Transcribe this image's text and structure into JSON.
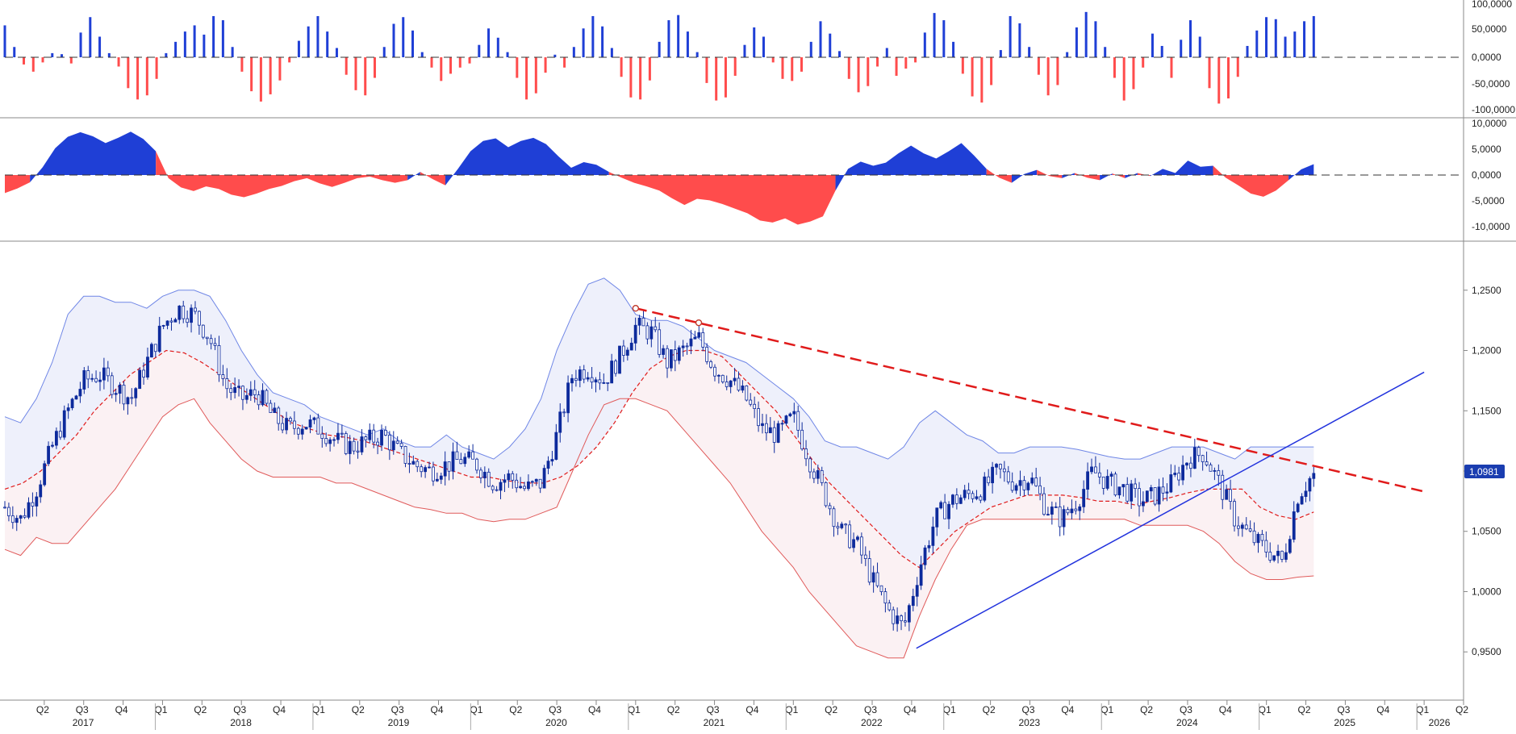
{
  "colors": {
    "up": "#1f3fd6",
    "down": "#ff4c4c",
    "candle": "#0d2a9c",
    "band_upper": "#6f86e6",
    "band_lower": "#e05a5a",
    "band_fill_upper": "#eef0fb",
    "band_fill_lower": "#fbf1f3",
    "mid_line": "#e01b1b",
    "resistance": "#e01b1b",
    "support": "#2233dd",
    "price_tag": "#1a3db0"
  },
  "chart_data": [
    {
      "type": "bar",
      "panel": "oscillator-bars",
      "yticks": [
        "100,0000",
        "50,0000",
        "0,0000",
        "-50,0000",
        "-100,0000"
      ],
      "ytick_values": [
        100,
        50,
        0,
        -50,
        -100
      ],
      "ylim": [
        -105,
        105
      ],
      "start_year": 2017,
      "end_year": 2025.3,
      "values": [
        62,
        20,
        -14,
        -28,
        -10,
        8,
        6,
        -12,
        48,
        78,
        40,
        8,
        -18,
        -60,
        -82,
        -74,
        -42,
        8,
        30,
        50,
        62,
        44,
        80,
        72,
        20,
        -28,
        -66,
        -86,
        -72,
        -45,
        -10,
        32,
        60,
        80,
        50,
        18,
        -34,
        -64,
        -74,
        -40,
        20,
        65,
        78,
        52,
        10,
        -20,
        -46,
        -32,
        -20,
        -12,
        24,
        56,
        38,
        10,
        -40,
        -82,
        -70,
        -30,
        5,
        -20,
        20,
        56,
        80,
        60,
        18,
        -38,
        -78,
        -82,
        -45,
        30,
        72,
        82,
        50,
        10,
        -50,
        -84,
        -78,
        -36,
        24,
        58,
        40,
        -10,
        -42,
        -46,
        -28,
        30,
        70,
        46,
        12,
        -42,
        -68,
        -56,
        -18,
        18,
        -36,
        -22,
        -10,
        48,
        86,
        72,
        30,
        -32,
        -76,
        -88,
        -54,
        14,
        80,
        66,
        20,
        -34,
        -74,
        -54,
        10,
        58,
        88,
        70,
        20,
        -40,
        -84,
        -62,
        -20,
        46,
        22,
        -40,
        34,
        72,
        40,
        -60,
        -90,
        -80,
        -38,
        22,
        52,
        78,
        74,
        40,
        50,
        70,
        80
      ],
      "baseline": "0,0000"
    },
    {
      "type": "area",
      "panel": "momentum-area",
      "yticks": [
        "10,0000",
        "5,0000",
        "0,0000",
        "-5,0000",
        "-10,0000"
      ],
      "ytick_values": [
        10,
        5,
        0,
        -5,
        -10
      ],
      "ylim": [
        -11.5,
        11
      ],
      "start_year": 2017,
      "end_year": 2025.3,
      "values": [
        -3.5,
        -2.6,
        -1.4,
        1.5,
        5.2,
        7.4,
        8.3,
        7.5,
        6.2,
        7.2,
        8.4,
        7.0,
        4.6,
        -0.6,
        -2.4,
        -3.1,
        -2.2,
        -2.7,
        -3.8,
        -4.3,
        -3.6,
        -2.7,
        -2.1,
        -1.2,
        -0.6,
        -1.6,
        -2.3,
        -1.5,
        -0.6,
        -0.3,
        -1.0,
        -1.5,
        -1.0,
        0.6,
        -0.8,
        -2.0,
        1.2,
        4.6,
        6.6,
        7.1,
        5.4,
        6.6,
        7.2,
        6.0,
        3.6,
        1.4,
        2.5,
        2.0,
        0.6,
        -0.5,
        -1.5,
        -2.2,
        -3.0,
        -4.5,
        -5.8,
        -4.6,
        -4.9,
        -5.6,
        -6.5,
        -7.4,
        -8.8,
        -9.2,
        -8.4,
        -9.6,
        -9.0,
        -8.0,
        -3.0,
        1.2,
        2.6,
        1.8,
        2.4,
        4.2,
        5.7,
        4.2,
        3.2,
        4.6,
        6.2,
        3.8,
        1.2,
        -0.5,
        -1.5,
        0.2,
        1.0,
        -0.2,
        -0.6,
        0.4,
        -0.5,
        -1.0,
        0.3,
        -0.6,
        0.4,
        -0.2,
        1.2,
        0.4,
        2.8,
        1.6,
        1.8,
        -0.5,
        -2.0,
        -3.6,
        -4.2,
        -3.0,
        -1.0,
        1.1,
        2.1
      ]
    },
    {
      "type": "line",
      "panel": "price-candles-bands",
      "yticks": [
        "1,2500",
        "1,2000",
        "1,1500",
        "1,1000",
        "1,0500",
        "1,0000",
        "0,9500"
      ],
      "ytick_values": [
        1.25,
        1.2,
        1.15,
        1.1,
        1.05,
        1.0,
        0.95
      ],
      "ylim": [
        0.91,
        1.29
      ],
      "x_ticks": [
        {
          "label": "Q2",
          "t": 2017.25
        },
        {
          "label": "Q3",
          "t": 2017.5
        },
        {
          "label": "Q4",
          "t": 2017.75
        },
        {
          "label": "Q1",
          "t": 2018.0
        },
        {
          "label": "Q2",
          "t": 2018.25
        },
        {
          "label": "Q3",
          "t": 2018.5
        },
        {
          "label": "Q4",
          "t": 2018.75
        },
        {
          "label": "Q1",
          "t": 2019.0
        },
        {
          "label": "Q2",
          "t": 2019.25
        },
        {
          "label": "Q3",
          "t": 2019.5
        },
        {
          "label": "Q4",
          "t": 2019.75
        },
        {
          "label": "Q1",
          "t": 2020.0
        },
        {
          "label": "Q2",
          "t": 2020.25
        },
        {
          "label": "Q3",
          "t": 2020.5
        },
        {
          "label": "Q4",
          "t": 2020.75
        },
        {
          "label": "Q1",
          "t": 2021.0
        },
        {
          "label": "Q2",
          "t": 2021.25
        },
        {
          "label": "Q3",
          "t": 2021.5
        },
        {
          "label": "Q4",
          "t": 2021.75
        },
        {
          "label": "Q1",
          "t": 2022.0
        },
        {
          "label": "Q2",
          "t": 2022.25
        },
        {
          "label": "Q3",
          "t": 2022.5
        },
        {
          "label": "Q4",
          "t": 2022.75
        },
        {
          "label": "Q1",
          "t": 2023.0
        },
        {
          "label": "Q2",
          "t": 2023.25
        },
        {
          "label": "Q3",
          "t": 2023.5
        },
        {
          "label": "Q4",
          "t": 2023.75
        },
        {
          "label": "Q1",
          "t": 2024.0
        },
        {
          "label": "Q2",
          "t": 2024.25
        },
        {
          "label": "Q3",
          "t": 2024.5
        },
        {
          "label": "Q4",
          "t": 2024.75
        },
        {
          "label": "Q1",
          "t": 2025.0
        },
        {
          "label": "Q2",
          "t": 2025.25
        },
        {
          "label": "Q3",
          "t": 2025.5
        },
        {
          "label": "Q4",
          "t": 2025.75
        },
        {
          "label": "Q1",
          "t": 2026.0
        },
        {
          "label": "Q2",
          "t": 2026.25
        }
      ],
      "years": [
        {
          "label": "2017",
          "t": 2017.5
        },
        {
          "label": "2018",
          "t": 2018.5
        },
        {
          "label": "2019",
          "t": 2019.5
        },
        {
          "label": "2020",
          "t": 2020.5
        },
        {
          "label": "2021",
          "t": 2021.5
        },
        {
          "label": "2022",
          "t": 2022.5
        },
        {
          "label": "2023",
          "t": 2023.5
        },
        {
          "label": "2024",
          "t": 2024.5
        },
        {
          "label": "2025",
          "t": 2025.5
        },
        {
          "label": "2026",
          "t": 2026.1
        }
      ],
      "price": {
        "x": [
          2017.0,
          2017.1,
          2017.2,
          2017.3,
          2017.4,
          2017.5,
          2017.6,
          2017.7,
          2017.8,
          2017.9,
          2018.0,
          2018.1,
          2018.2,
          2018.3,
          2018.4,
          2018.5,
          2018.6,
          2018.7,
          2018.8,
          2018.9,
          2019.0,
          2019.1,
          2019.2,
          2019.3,
          2019.4,
          2019.5,
          2019.6,
          2019.7,
          2019.8,
          2019.9,
          2020.0,
          2020.1,
          2020.2,
          2020.3,
          2020.4,
          2020.5,
          2020.6,
          2020.7,
          2020.8,
          2020.9,
          2021.0,
          2021.1,
          2021.2,
          2021.3,
          2021.4,
          2021.5,
          2021.6,
          2021.7,
          2021.8,
          2021.9,
          2022.0,
          2022.1,
          2022.2,
          2022.3,
          2022.4,
          2022.5,
          2022.6,
          2022.7,
          2022.8,
          2022.9,
          2023.0,
          2023.1,
          2023.2,
          2023.3,
          2023.4,
          2023.5,
          2023.6,
          2023.7,
          2023.8,
          2023.9,
          2024.0,
          2024.1,
          2024.2,
          2024.3,
          2024.4,
          2024.5,
          2024.6,
          2024.7,
          2024.8,
          2024.9,
          2025.0,
          2025.1,
          2025.2,
          2025.3
        ],
        "y": [
          1.07,
          1.06,
          1.085,
          1.12,
          1.15,
          1.175,
          1.18,
          1.17,
          1.16,
          1.19,
          1.22,
          1.235,
          1.23,
          1.21,
          1.17,
          1.16,
          1.165,
          1.145,
          1.135,
          1.14,
          1.135,
          1.125,
          1.12,
          1.125,
          1.13,
          1.115,
          1.105,
          1.1,
          1.105,
          1.11,
          1.105,
          1.09,
          1.095,
          1.085,
          1.09,
          1.13,
          1.18,
          1.185,
          1.175,
          1.195,
          1.22,
          1.215,
          1.19,
          1.2,
          1.21,
          1.185,
          1.175,
          1.16,
          1.135,
          1.13,
          1.145,
          1.11,
          1.08,
          1.05,
          1.04,
          1.01,
          0.985,
          0.97,
          1.02,
          1.06,
          1.075,
          1.08,
          1.085,
          1.1,
          1.09,
          1.095,
          1.07,
          1.06,
          1.075,
          1.1,
          1.09,
          1.085,
          1.075,
          1.08,
          1.09,
          1.11,
          1.115,
          1.09,
          1.06,
          1.045,
          1.035,
          1.025,
          1.08,
          1.0981
        ]
      },
      "upper_band": [
        1.145,
        1.14,
        1.16,
        1.19,
        1.23,
        1.245,
        1.245,
        1.24,
        1.24,
        1.235,
        1.245,
        1.25,
        1.25,
        1.245,
        1.225,
        1.2,
        1.18,
        1.165,
        1.16,
        1.155,
        1.145,
        1.14,
        1.135,
        1.13,
        1.135,
        1.125,
        1.12,
        1.12,
        1.13,
        1.12,
        1.115,
        1.11,
        1.12,
        1.135,
        1.16,
        1.2,
        1.23,
        1.255,
        1.26,
        1.25,
        1.23,
        1.225,
        1.225,
        1.22,
        1.21,
        1.2,
        1.195,
        1.19,
        1.18,
        1.17,
        1.16,
        1.145,
        1.125,
        1.12,
        1.12,
        1.115,
        1.11,
        1.12,
        1.14,
        1.15,
        1.14,
        1.13,
        1.125,
        1.115,
        1.115,
        1.12,
        1.12,
        1.12,
        1.118,
        1.115,
        1.112,
        1.11,
        1.11,
        1.115,
        1.12,
        1.12,
        1.12,
        1.115,
        1.11,
        1.12,
        1.12,
        1.12,
        1.12,
        1.12
      ],
      "lower_band": [
        1.035,
        1.03,
        1.045,
        1.04,
        1.04,
        1.055,
        1.07,
        1.085,
        1.105,
        1.125,
        1.145,
        1.155,
        1.16,
        1.14,
        1.125,
        1.11,
        1.1,
        1.095,
        1.095,
        1.095,
        1.095,
        1.09,
        1.09,
        1.085,
        1.08,
        1.075,
        1.07,
        1.068,
        1.065,
        1.065,
        1.06,
        1.058,
        1.06,
        1.06,
        1.065,
        1.07,
        1.1,
        1.13,
        1.155,
        1.16,
        1.16,
        1.155,
        1.15,
        1.135,
        1.12,
        1.105,
        1.09,
        1.07,
        1.05,
        1.035,
        1.02,
        1.0,
        0.985,
        0.97,
        0.955,
        0.95,
        0.945,
        0.945,
        0.98,
        1.01,
        1.035,
        1.055,
        1.06,
        1.06,
        1.06,
        1.06,
        1.06,
        1.06,
        1.06,
        1.06,
        1.06,
        1.06,
        1.055,
        1.055,
        1.055,
        1.055,
        1.05,
        1.04,
        1.025,
        1.015,
        1.01,
        1.01,
        1.012,
        1.013
      ],
      "mid_line": [
        1.085,
        1.09,
        1.1,
        1.115,
        1.13,
        1.15,
        1.165,
        1.18,
        1.19,
        1.2,
        1.198,
        1.19,
        1.18,
        1.17,
        1.16,
        1.15,
        1.14,
        1.135,
        1.13,
        1.128,
        1.125,
        1.12,
        1.115,
        1.11,
        1.105,
        1.1,
        1.095,
        1.095,
        1.092,
        1.09,
        1.09,
        1.095,
        1.105,
        1.12,
        1.14,
        1.165,
        1.185,
        1.195,
        1.2,
        1.2,
        1.195,
        1.18,
        1.165,
        1.15,
        1.13,
        1.11,
        1.09,
        1.075,
        1.06,
        1.045,
        1.03,
        1.02,
        1.035,
        1.05,
        1.06,
        1.07,
        1.075,
        1.08,
        1.08,
        1.08,
        1.078,
        1.075,
        1.075,
        1.072,
        1.075,
        1.078,
        1.082,
        1.085,
        1.085,
        1.085,
        1.07,
        1.063,
        1.06,
        1.066
      ],
      "resistance_line": [
        [
          2021.0,
          1.235
        ],
        [
          2026.0,
          1.083
        ]
      ],
      "support_line": [
        [
          2022.78,
          0.953
        ],
        [
          2026.0,
          1.182
        ]
      ],
      "touch_points": [
        [
          2021.0,
          1.235
        ],
        [
          2021.4,
          1.223
        ]
      ],
      "last_price_label": "1,0981",
      "last_price": 1.0981
    }
  ]
}
